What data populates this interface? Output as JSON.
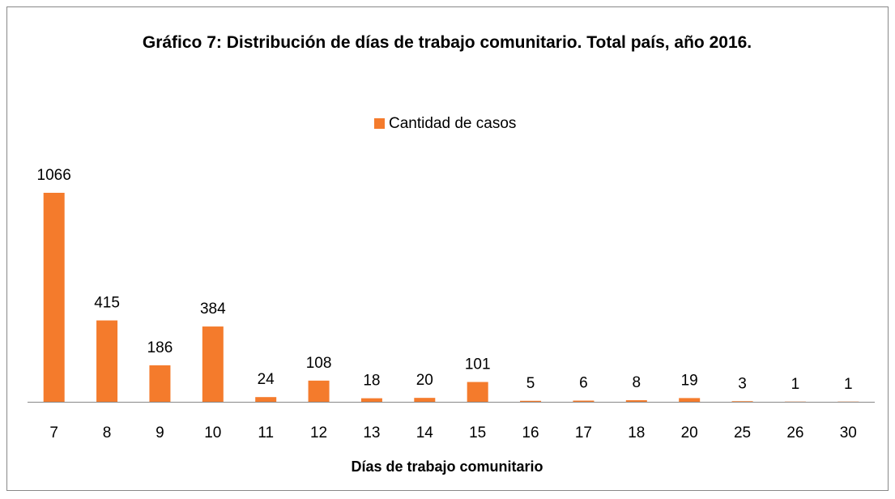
{
  "chart_data": {
    "type": "bar",
    "title": "Gráfico 7: Distribución de días de trabajo comunitario. Total país, año 2016.",
    "x_label": "Días de trabajo comunitario",
    "categories": [
      "7",
      "8",
      "9",
      "10",
      "11",
      "12",
      "13",
      "14",
      "15",
      "16",
      "17",
      "18",
      "20",
      "25",
      "26",
      "30"
    ],
    "series": [
      {
        "name": "Cantidad de casos",
        "color": "#f47b2c",
        "values": [
          1066,
          415,
          186,
          384,
          24,
          108,
          18,
          20,
          101,
          5,
          6,
          8,
          19,
          3,
          1,
          1
        ]
      }
    ],
    "legend": "top",
    "grid": false
  }
}
